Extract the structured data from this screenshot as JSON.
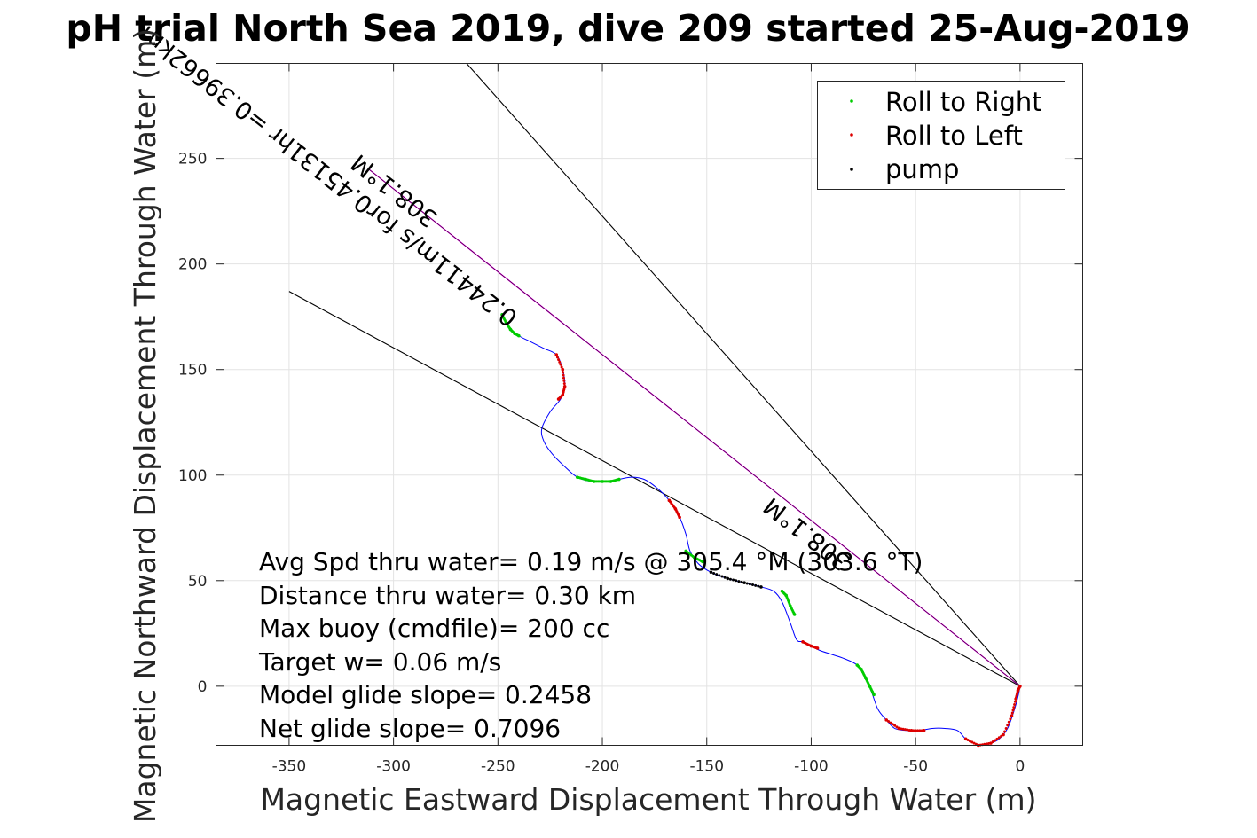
{
  "chart_data": {
    "type": "line",
    "title": "pH trial North Sea 2019, dive 209 started 25-Aug-2019",
    "xlabel": "Magnetic Eastward Displacement Through Water (m)",
    "ylabel": "Magnetic Northward Displacement Through Water (m)",
    "xlim": [
      -385,
      30
    ],
    "ylim": [
      -28,
      295
    ],
    "xticks": [
      -350,
      -300,
      -250,
      -200,
      -150,
      -100,
      -50,
      0
    ],
    "yticks": [
      0,
      50,
      100,
      150,
      200,
      250
    ],
    "grid": true,
    "legend_position": "top-right",
    "legend": [
      {
        "label": "Roll to Right",
        "color": "#00cc00"
      },
      {
        "label": "Roll to Left",
        "color": "#dd0000"
      },
      {
        "label": "pump",
        "color": "#000000"
      }
    ],
    "colors": {
      "track": "#0000ff",
      "net_line": "#cc00cc",
      "roll_right": "#00cc00",
      "roll_left": "#dd0000",
      "pump": "#000000",
      "cone_lines": "#000000"
    },
    "track": {
      "x": [
        -248,
        -245,
        -240,
        -234,
        -228,
        -222,
        -219,
        -218,
        -220,
        -225,
        -229,
        -228,
        -224,
        -218,
        -212,
        -205,
        -198,
        -192,
        -186,
        -180,
        -174,
        -168,
        -163,
        -160,
        -158,
        -154,
        -148,
        -140,
        -132,
        -124,
        -118,
        -114,
        -110,
        -107,
        -104,
        -100,
        -96,
        -90,
        -84,
        -78,
        -74,
        -71,
        -68,
        -64,
        -60,
        -54,
        -48,
        -42,
        -36,
        -30,
        -26,
        -22,
        -18,
        -14,
        -10,
        -6,
        -3,
        -1,
        0
      ],
      "y": [
        176,
        170,
        166,
        163,
        160,
        157,
        150,
        142,
        136,
        130,
        122,
        116,
        110,
        104,
        99,
        97,
        97,
        98,
        99,
        98,
        94,
        88,
        80,
        72,
        64,
        58,
        54,
        51,
        49,
        47,
        45,
        40,
        30,
        22,
        21,
        19,
        17,
        15,
        13,
        10,
        4,
        -3,
        -11,
        -16,
        -20,
        -21,
        -21,
        -20,
        -20,
        -21,
        -25,
        -27,
        -28,
        -27,
        -25,
        -20,
        -12,
        -5,
        0
      ]
    },
    "roll_right_segments": [
      {
        "x": [
          -248,
          -246,
          -244,
          -242,
          -240
        ],
        "y": [
          176,
          172,
          169,
          167,
          166
        ]
      },
      {
        "x": [
          -212,
          -208,
          -204,
          -200,
          -196,
          -192
        ],
        "y": [
          99,
          98,
          97,
          97,
          97,
          98
        ]
      },
      {
        "x": [
          -160,
          -156,
          -152
        ],
        "y": [
          64,
          61,
          59
        ]
      },
      {
        "x": [
          -114,
          -112,
          -110,
          -108
        ],
        "y": [
          45,
          43,
          38,
          34
        ]
      },
      {
        "x": [
          -78,
          -76,
          -74,
          -72,
          -70
        ],
        "y": [
          10,
          8,
          4,
          0,
          -4
        ]
      }
    ],
    "roll_left_segments": [
      {
        "x": [
          -222,
          -219,
          -218,
          -219,
          -221
        ],
        "y": [
          157,
          150,
          142,
          138,
          136
        ]
      },
      {
        "x": [
          -168,
          -165,
          -163
        ],
        "y": [
          88,
          84,
          80
        ]
      },
      {
        "x": [
          -104,
          -100,
          -97
        ],
        "y": [
          21,
          19,
          18
        ]
      },
      {
        "x": [
          -64,
          -58,
          -52,
          -46
        ],
        "y": [
          -16,
          -20,
          -21,
          -21
        ]
      },
      {
        "x": [
          -26,
          -20,
          -14,
          -8,
          -4,
          -2,
          -1,
          0
        ],
        "y": [
          -25,
          -28,
          -27,
          -23,
          -14,
          -6,
          -2,
          0
        ]
      }
    ],
    "pump_segments": [
      {
        "x": [
          -148,
          -140,
          -132,
          -124
        ],
        "y": [
          54,
          51,
          49,
          47
        ]
      }
    ],
    "net_line": {
      "x": [
        0,
        -312
      ],
      "y": [
        0,
        245
      ]
    },
    "cone_lines": [
      {
        "x": [
          0,
          -265
        ],
        "y": [
          0,
          295
        ]
      },
      {
        "x": [
          0,
          -350
        ],
        "y": [
          0,
          187
        ]
      }
    ]
  },
  "annotations": [
    "Avg Spd thru water=  0.19 m/s @ 305.4 °M (303.6 °T)",
    "Distance thru water=  0.30 km",
    "Max buoy (cmdfile)= 200 cc",
    "Target w= 0.06 m/s",
    "Model glide slope= 0.2458",
    "Net glide slope= 0.7096"
  ],
  "line_labels": [
    "308.1°M",
    "0.24411m/s for0.45131hr =0.39662km",
    "308.1°M"
  ]
}
